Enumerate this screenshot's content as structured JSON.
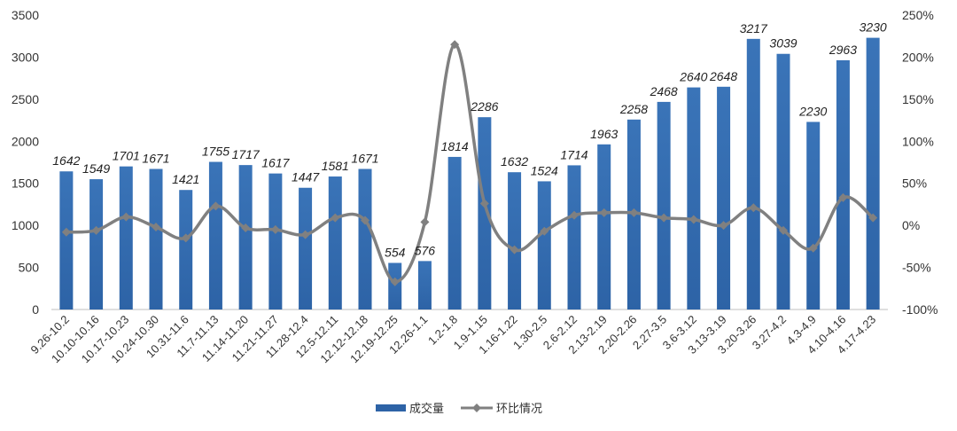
{
  "chart_data": {
    "type": "bar",
    "categories": [
      "9.26-10.2",
      "10.10-10.16",
      "10.17-10.23",
      "10.24-10.30",
      "10.31-11.6",
      "11.7-11.13",
      "11.14-11.20",
      "11.21-11.27",
      "11.28-12.4",
      "12.5-12.11",
      "12.12-12.18",
      "12.19-12.25",
      "12.26-1.1",
      "1.2-1.8",
      "1.9-1.15",
      "1.16-1.22",
      "1.30-2.5",
      "2.6-2.12",
      "2.13-2.19",
      "2.20-2.26",
      "2.27-3.5",
      "3.6-3.12",
      "3.13-3.19",
      "3.20-3.26",
      "3.27-4.2",
      "4.3-4.9",
      "4.10-4.16",
      "4.17-4.23"
    ],
    "series": [
      {
        "name": "成交量",
        "type": "bar",
        "axis": "left",
        "color": "#2d63a6",
        "values": [
          1642,
          1549,
          1701,
          1671,
          1421,
          1755,
          1717,
          1617,
          1447,
          1581,
          1671,
          554,
          576,
          1814,
          2286,
          1632,
          1524,
          1714,
          1963,
          2258,
          2468,
          2640,
          2648,
          3217,
          3039,
          2230,
          2963,
          3230
        ],
        "labels": [
          "1642",
          "1549",
          "1701",
          "1671",
          "1421",
          "1755",
          "1717",
          "1617",
          "1447",
          "1581",
          "1671",
          "554",
          "576",
          "1814",
          "2286",
          "1632",
          "1524",
          "1714",
          "1963",
          "2258",
          "2468",
          "2640",
          "2648",
          "3217",
          "3039",
          "2230",
          "2963",
          "3230"
        ]
      },
      {
        "name": "环比情况",
        "type": "line",
        "axis": "right",
        "color": "#808080",
        "values": [
          -0.08,
          -0.06,
          0.1,
          -0.02,
          -0.15,
          0.23,
          -0.03,
          -0.05,
          -0.11,
          0.09,
          0.06,
          -0.67,
          0.04,
          2.15,
          0.26,
          -0.29,
          -0.07,
          0.12,
          0.15,
          0.15,
          0.09,
          0.07,
          0.0,
          0.21,
          -0.06,
          -0.27,
          0.33,
          0.09
        ]
      }
    ],
    "y_left": {
      "range": [
        0,
        3500
      ],
      "ticks": [
        "0",
        "500",
        "1000",
        "1500",
        "2000",
        "2500",
        "3000",
        "3500"
      ]
    },
    "y_right": {
      "range": [
        -1.0,
        2.5
      ],
      "ticks": [
        "-100%",
        "-50%",
        "0%",
        "50%",
        "100%",
        "150%",
        "200%",
        "250%"
      ]
    },
    "grid": false,
    "legend_position": "bottom-center"
  }
}
